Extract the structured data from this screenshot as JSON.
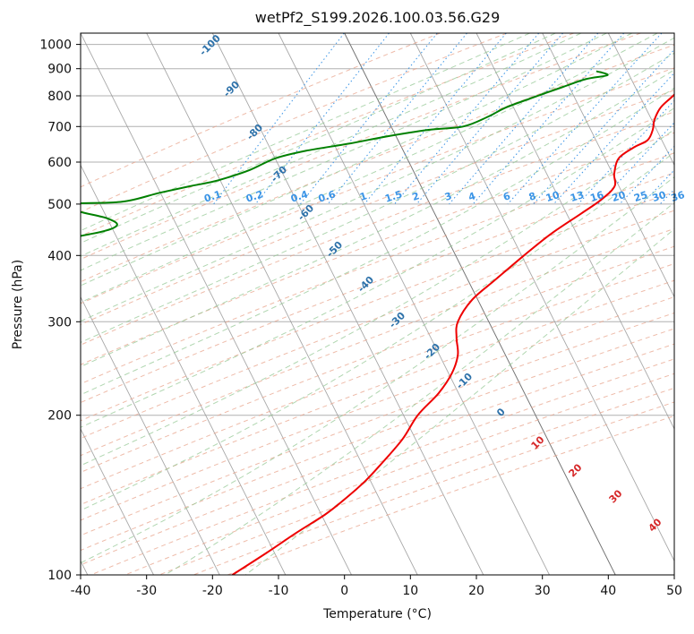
{
  "chart_data": {
    "type": "line",
    "title": "wetPf2_S199.2026.100.03.56.G29",
    "xlabel": "Temperature (°C)",
    "ylabel": "Pressure (hPa)",
    "xlim": [
      -40,
      50
    ],
    "ylim": [
      1050,
      100
    ],
    "x_ticks": [
      "-40",
      "-30",
      "-20",
      "-10",
      "0",
      "10",
      "20",
      "30",
      "40",
      "50"
    ],
    "y_ticks": [
      "100",
      "200",
      "300",
      "400",
      "500",
      "600",
      "700",
      "800",
      "900",
      "1000"
    ],
    "colors": {
      "temperature": "#ee0000",
      "dewpoint": "#008000",
      "dry_adiabat": "#e8a48c",
      "moist_adiabat": "#96c896",
      "isotherm": "#999999",
      "mixing_ratio": "#3a94e6",
      "dry_label": "#2e72aa",
      "moist_label": "#d62728"
    },
    "series": [
      {
        "name": "Temperature",
        "color": "#ee0000",
        "pressure_hpa": [
          900,
          850,
          800,
          760,
          720,
          690,
          660,
          640,
          610,
          570,
          540,
          510,
          480,
          440,
          400,
          360,
          330,
          300,
          280,
          260,
          240,
          220,
          200,
          180,
          160,
          150,
          140,
          130,
          120,
          110,
          100
        ],
        "temp_c": [
          15.5,
          14.5,
          13.5,
          12.5,
          12.5,
          13.0,
          13.0,
          11.5,
          10.0,
          10.5,
          11.5,
          10.5,
          8.5,
          5.5,
          3.0,
          0.5,
          -1.5,
          -2.0,
          -1.0,
          0.5,
          1.0,
          0.5,
          -1.0,
          -1.5,
          -3.0,
          -4.0,
          -5.5,
          -7.5,
          -10.5,
          -13.5,
          -17.0
        ]
      },
      {
        "name": "Dewpoint",
        "color": "#008000",
        "pressure_hpa": [
          890,
          875,
          860,
          830,
          790,
          760,
          730,
          700,
          690,
          670,
          650,
          630,
          610,
          580,
          560,
          550,
          540,
          525,
          505,
          500,
          485,
          470,
          455,
          440,
          425,
          420,
          400,
          370,
          350,
          330,
          310,
          300,
          290,
          285,
          280,
          275,
          270,
          265,
          260,
          250,
          240,
          232,
          225,
          215,
          200,
          185,
          175,
          165,
          155,
          145,
          135,
          125,
          115,
          100
        ],
        "dewpoint_c": [
          0,
          2,
          -1,
          -4,
          -8,
          -11,
          -13,
          -16,
          -21,
          -27,
          -32,
          -38,
          -42,
          -45,
          -48,
          -50,
          -53,
          -57,
          -62,
          -70,
          -68,
          -63,
          -61,
          -64,
          -72,
          -88,
          -90,
          -90,
          -91,
          -90,
          -89,
          -83,
          -78,
          -79,
          -81,
          -84,
          -88,
          -93,
          -94,
          -93,
          -90,
          -87,
          -84,
          -82,
          -80,
          -77,
          -78,
          -81,
          -84,
          -86,
          -83,
          -80,
          -76,
          -71
        ]
      }
    ],
    "mixing_ratio_labels": [
      "0.1",
      "0.2",
      "0.4",
      "0.6",
      "1",
      "1.5",
      "2",
      "3",
      "4",
      "6",
      "8",
      "10",
      "13",
      "16",
      "20",
      "25",
      "30",
      "36"
    ],
    "dry_adiabat_labels": [
      "-100",
      "-90",
      "-80",
      "-70",
      "-60",
      "-50",
      "-40",
      "-30",
      "-20",
      "-10",
      "0",
      "10",
      "20",
      "30",
      "40"
    ],
    "moist_adiabat_labels": [
      "10",
      "20",
      "30",
      "40"
    ]
  }
}
